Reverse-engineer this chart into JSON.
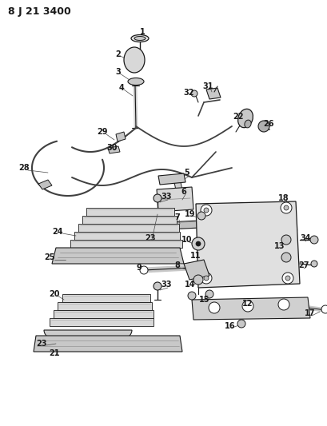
{
  "title": "8 J 21 3400",
  "bg_color": "#ffffff",
  "fg_color": "#000000",
  "fig_width": 4.09,
  "fig_height": 5.33,
  "dpi": 100
}
